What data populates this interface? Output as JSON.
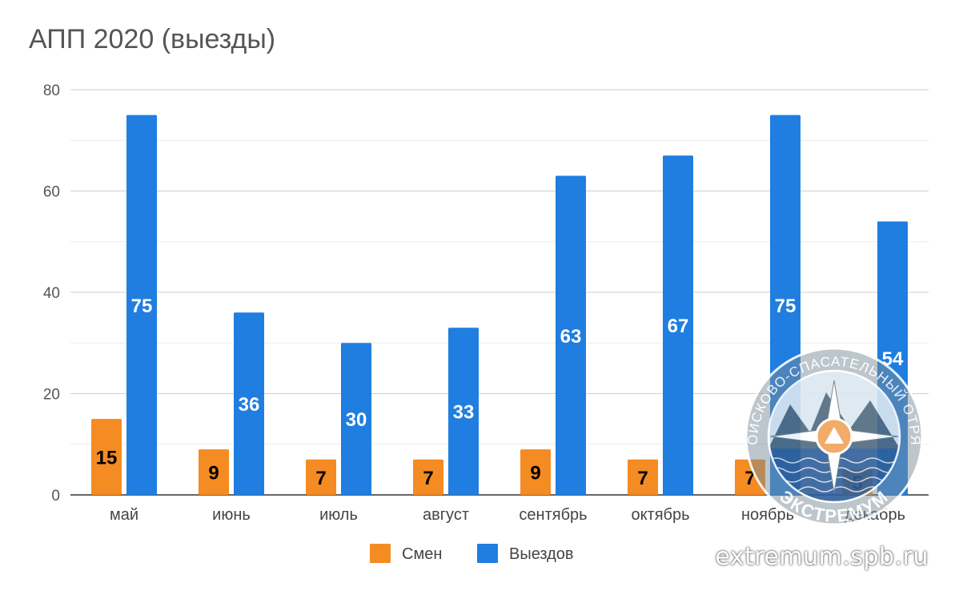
{
  "chart_data": {
    "type": "bar",
    "title": "АПП 2020 (выезды)",
    "categories": [
      "май",
      "июнь",
      "июль",
      "август",
      "сентябрь",
      "октябрь",
      "ноябрь",
      "декабрь"
    ],
    "series": [
      {
        "name": "Смен",
        "color": "#f58b23",
        "values": [
          15,
          9,
          7,
          7,
          9,
          7,
          7,
          5
        ],
        "label_color": "#000000"
      },
      {
        "name": "Выездов",
        "color": "#1f7ee0",
        "values": [
          75,
          36,
          30,
          33,
          63,
          67,
          75,
          54
        ],
        "label_color": "#ffffff"
      }
    ],
    "ylim": [
      0,
      80
    ],
    "yticks": [
      0,
      20,
      40,
      60,
      80
    ],
    "grid": true,
    "legend_position": "bottom"
  },
  "watermark": {
    "url": "extremum.spb.ru",
    "seal_ring_text": "ПОИСКОВО-СПАСАТЕЛЬНЫЙ ОТРЯД",
    "seal_bottom_text": "ЭКСТРЕМУМ"
  }
}
